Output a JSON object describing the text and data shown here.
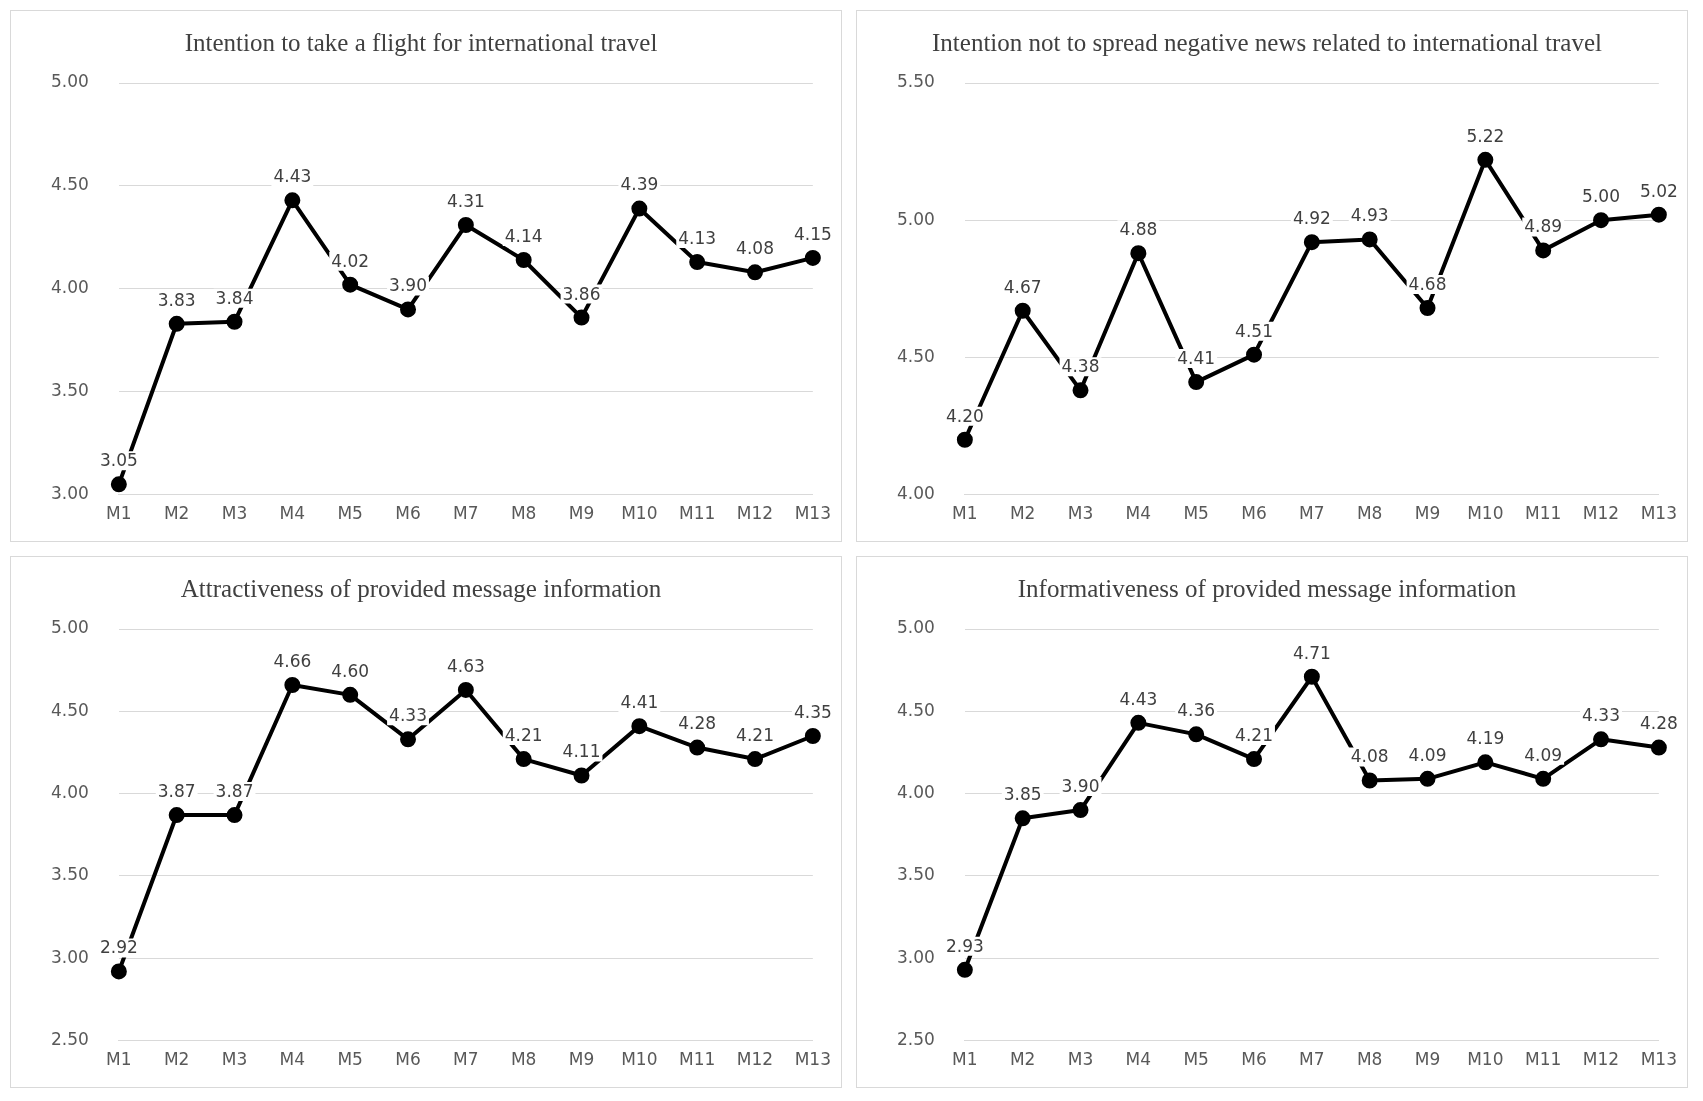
{
  "chart_data": [
    {
      "type": "line",
      "title": "Intention to take a flight for international travel",
      "categories": [
        "M1",
        "M2",
        "M3",
        "M4",
        "M5",
        "M6",
        "M7",
        "M8",
        "M9",
        "M10",
        "M11",
        "M12",
        "M13"
      ],
      "color": "#000000",
      "marker": "circle",
      "grid": "y",
      "values": [
        3.05,
        3.83,
        3.84,
        4.43,
        4.02,
        3.9,
        4.31,
        4.14,
        3.86,
        4.39,
        4.13,
        4.08,
        4.15
      ],
      "value_labels": [
        "3.05",
        "3.83",
        "3.84",
        "4.43",
        "4.02",
        "3.90",
        "4.31",
        "4.14",
        "3.86",
        "4.39",
        "4.13",
        "4.08",
        "4.15"
      ],
      "ylim": [
        3,
        5
      ],
      "yticks": [
        {
          "value": 3,
          "label": "3.00"
        },
        {
          "value": 3.5,
          "label": "3.50"
        },
        {
          "value": 4,
          "label": "4.00"
        },
        {
          "value": 4.5,
          "label": "4.50"
        },
        {
          "value": 5,
          "label": "5.00"
        }
      ]
    },
    {
      "type": "line",
      "title": "Intention not to spread negative news related to international travel",
      "categories": [
        "M1",
        "M2",
        "M3",
        "M4",
        "M5",
        "M6",
        "M7",
        "M8",
        "M9",
        "M10",
        "M11",
        "M12",
        "M13"
      ],
      "color": "#000000",
      "marker": "circle",
      "grid": "y",
      "values": [
        4.2,
        4.67,
        4.38,
        4.88,
        4.41,
        4.51,
        4.92,
        4.93,
        4.68,
        5.22,
        4.89,
        5.0,
        5.02
      ],
      "value_labels": [
        "4.20",
        "4.67",
        "4.38",
        "4.88",
        "4.41",
        "4.51",
        "4.92",
        "4.93",
        "4.68",
        "5.22",
        "4.89",
        "5.00",
        "5.02"
      ],
      "ylim": [
        4,
        5.5
      ],
      "yticks": [
        {
          "value": 4,
          "label": "4.00"
        },
        {
          "value": 4.5,
          "label": "4.50"
        },
        {
          "value": 5,
          "label": "5.00"
        },
        {
          "value": 5.5,
          "label": "5.50"
        }
      ]
    },
    {
      "type": "line",
      "title": "Attractiveness of provided message information",
      "categories": [
        "M1",
        "M2",
        "M3",
        "M4",
        "M5",
        "M6",
        "M7",
        "M8",
        "M9",
        "M10",
        "M11",
        "M12",
        "M13"
      ],
      "color": "#000000",
      "marker": "circle",
      "grid": "y",
      "values": [
        2.92,
        3.87,
        3.87,
        4.66,
        4.6,
        4.33,
        4.63,
        4.21,
        4.11,
        4.41,
        4.28,
        4.21,
        4.35
      ],
      "value_labels": [
        "2.92",
        "3.87",
        "3.87",
        "4.66",
        "4.60",
        "4.33",
        "4.63",
        "4.21",
        "4.11",
        "4.41",
        "4.28",
        "4.21",
        "4.35"
      ],
      "ylim": [
        2.5,
        5
      ],
      "yticks": [
        {
          "value": 2.5,
          "label": "2.50"
        },
        {
          "value": 3,
          "label": "3.00"
        },
        {
          "value": 3.5,
          "label": "3.50"
        },
        {
          "value": 4,
          "label": "4.00"
        },
        {
          "value": 4.5,
          "label": "4.50"
        },
        {
          "value": 5,
          "label": "5.00"
        }
      ]
    },
    {
      "type": "line",
      "title": "Informativeness of provided message information",
      "categories": [
        "M1",
        "M2",
        "M3",
        "M4",
        "M5",
        "M6",
        "M7",
        "M8",
        "M9",
        "M10",
        "M11",
        "M12",
        "M13"
      ],
      "color": "#000000",
      "marker": "circle",
      "grid": "y",
      "values": [
        2.93,
        3.85,
        3.9,
        4.43,
        4.36,
        4.21,
        4.71,
        4.08,
        4.09,
        4.19,
        4.09,
        4.33,
        4.28
      ],
      "value_labels": [
        "2.93",
        "3.85",
        "3.90",
        "4.43",
        "4.36",
        "4.21",
        "4.71",
        "4.08",
        "4.09",
        "4.19",
        "4.09",
        "4.33",
        "4.28"
      ],
      "ylim": [
        2.5,
        5
      ],
      "yticks": [
        {
          "value": 2.5,
          "label": "2.50"
        },
        {
          "value": 3,
          "label": "3.00"
        },
        {
          "value": 3.5,
          "label": "3.50"
        },
        {
          "value": 4,
          "label": "4.00"
        },
        {
          "value": 4.5,
          "label": "4.50"
        },
        {
          "value": 5,
          "label": "5.00"
        }
      ]
    }
  ]
}
